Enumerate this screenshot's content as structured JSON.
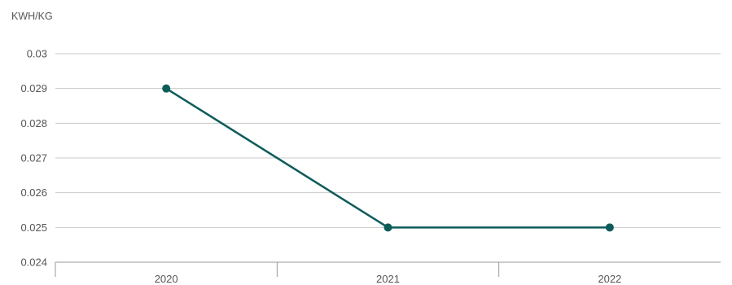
{
  "chart_data": {
    "type": "line",
    "title": "",
    "unit_label": "KWH/KG",
    "xlabel": "",
    "ylabel": "",
    "categories": [
      "2020",
      "2021",
      "2022"
    ],
    "series": [
      {
        "values": [
          0.029,
          0.025,
          0.025
        ]
      }
    ],
    "ylim": [
      0.024,
      0.03
    ],
    "yticks": [
      0.024,
      0.025,
      0.026,
      0.027,
      0.028,
      0.029,
      0.03
    ],
    "ytick_labels": [
      "0.024",
      "0.025",
      "0.026",
      "0.027",
      "0.028",
      "0.029",
      "0.03"
    ],
    "grid": true,
    "legend": "none",
    "colors": {
      "series": "#0e5c5a",
      "grid": "#c9c9c9",
      "text": "#555555"
    }
  }
}
